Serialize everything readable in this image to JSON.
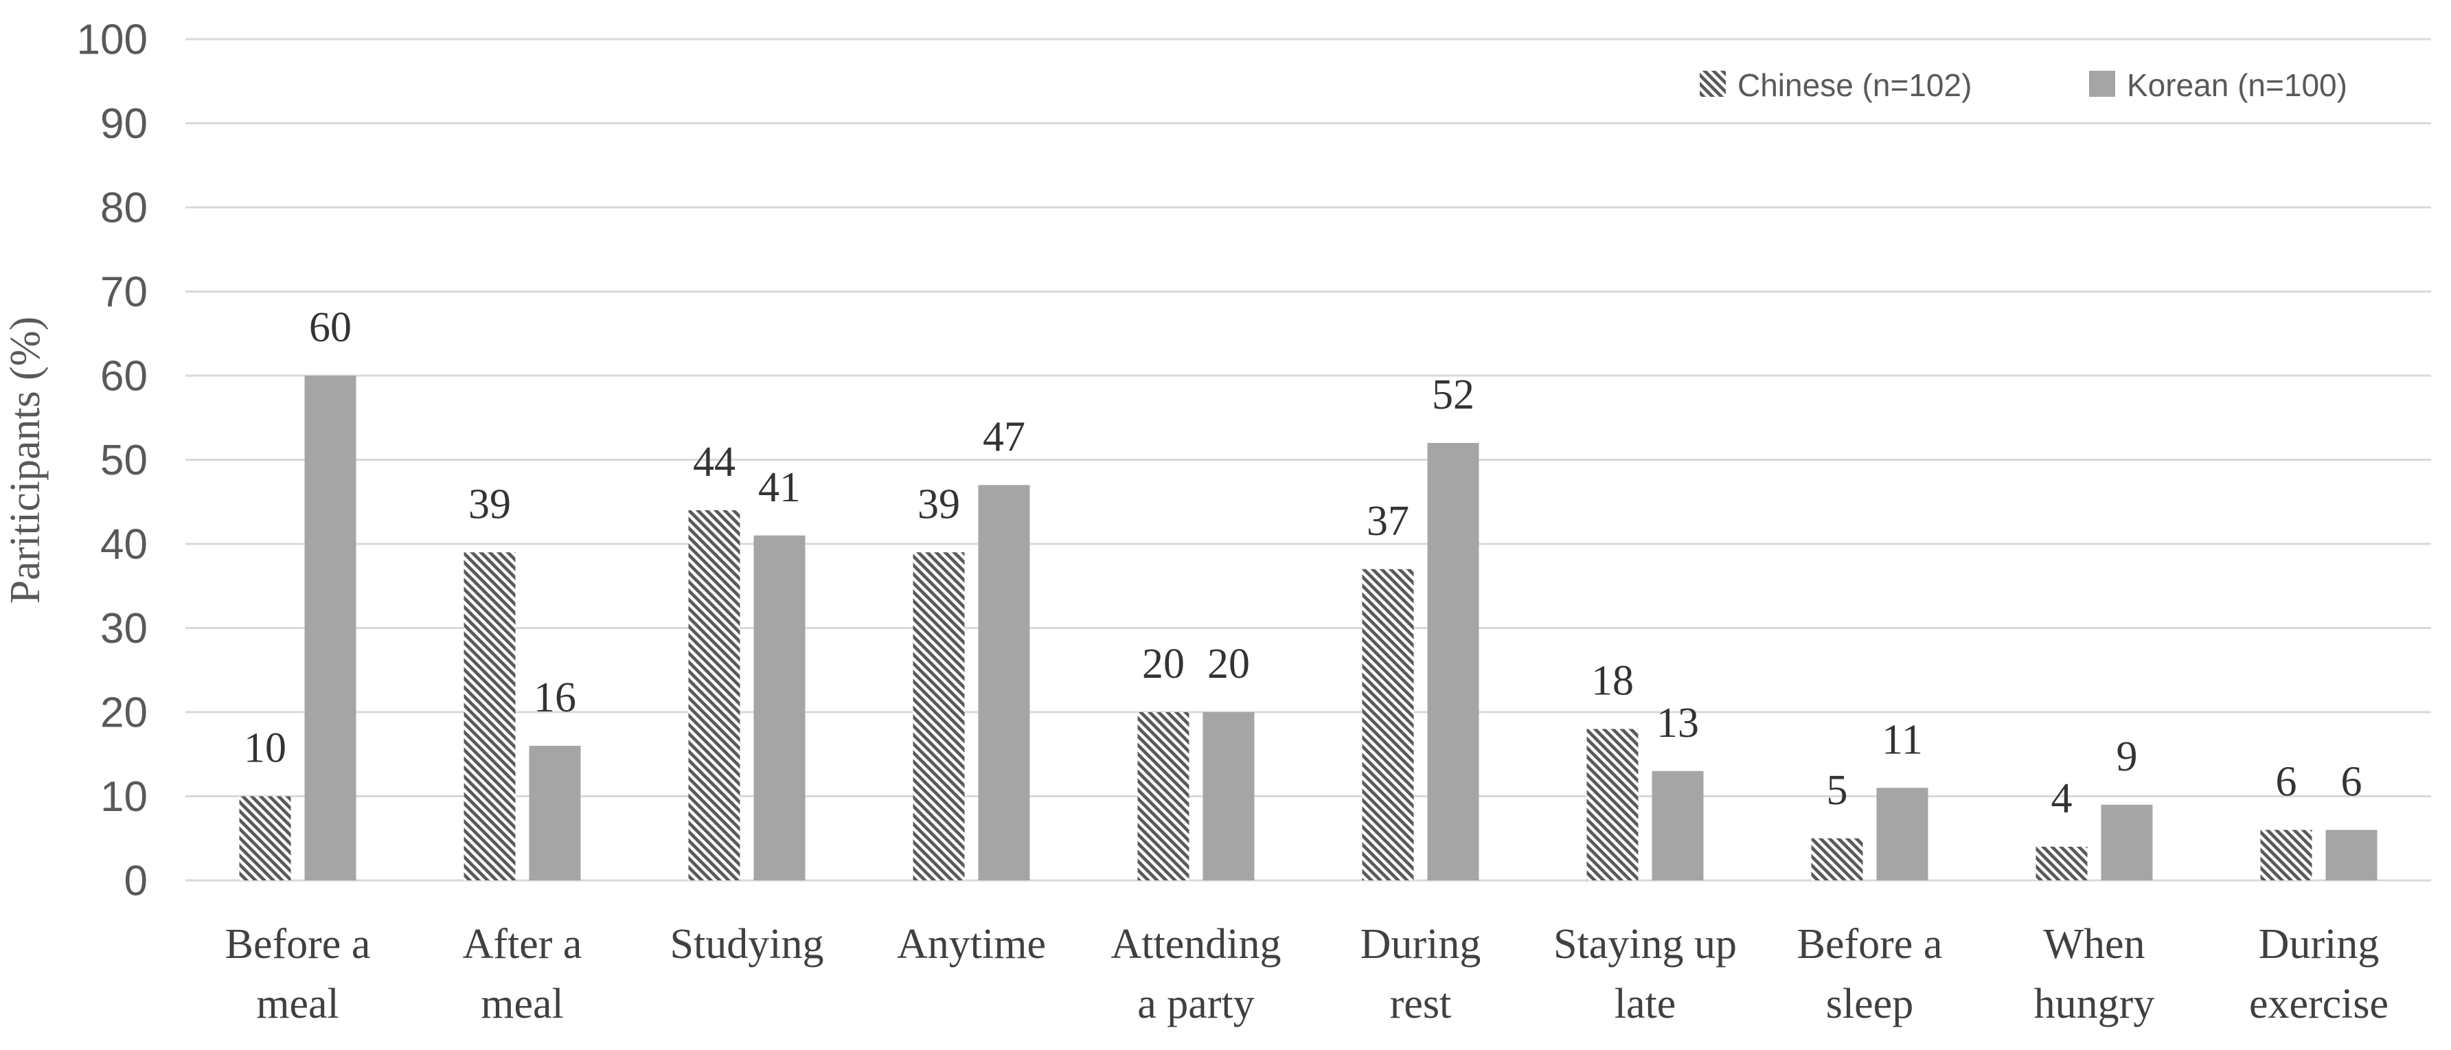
{
  "page": {
    "background": "#ffffff"
  },
  "chart_data": {
    "type": "bar",
    "title": "",
    "xlabel": "",
    "ylabel": "Pariticipants (%)",
    "categories": [
      "Before a meal",
      "After a meal",
      "Studying",
      "Anytime",
      "Attending a party",
      "During rest",
      "Staying up late",
      "Before a sleep",
      "When hungry",
      "During exercise"
    ],
    "category_lines": [
      [
        "Before a",
        "meal"
      ],
      [
        "After a",
        "meal"
      ],
      [
        "Studying"
      ],
      [
        "Anytime"
      ],
      [
        "Attending",
        "a party"
      ],
      [
        "During",
        "rest"
      ],
      [
        "Staying up",
        "late"
      ],
      [
        "Before a",
        "sleep"
      ],
      [
        "When",
        "hungry"
      ],
      [
        "During",
        "exercise"
      ]
    ],
    "series": [
      {
        "name": "Chinese (n=102)",
        "fill_style": "diagonal-hatch",
        "values": [
          10,
          39,
          44,
          39,
          20,
          37,
          18,
          5,
          4,
          6
        ]
      },
      {
        "name": "Korean (n=100)",
        "fill_style": "solid",
        "values": [
          60,
          16,
          41,
          47,
          20,
          52,
          13,
          11,
          9,
          6
        ]
      }
    ],
    "ylim": [
      0,
      100
    ],
    "yticks": [
      0,
      10,
      20,
      30,
      40,
      50,
      60,
      70,
      80,
      90,
      100
    ],
    "grid": "horizontal",
    "data_labels": true,
    "legend_position": "top-right",
    "colors": {
      "solid_bar": "#a5a5a5",
      "hatch_foreground": "#5a5a5a",
      "hatch_background": "#ffffff",
      "gridline": "#d9d9d9",
      "tick_text": "#595959",
      "data_label_text": "#333333",
      "category_text": "#404040",
      "legend_text": "#595959",
      "axis_title_text": "#595959"
    }
  }
}
